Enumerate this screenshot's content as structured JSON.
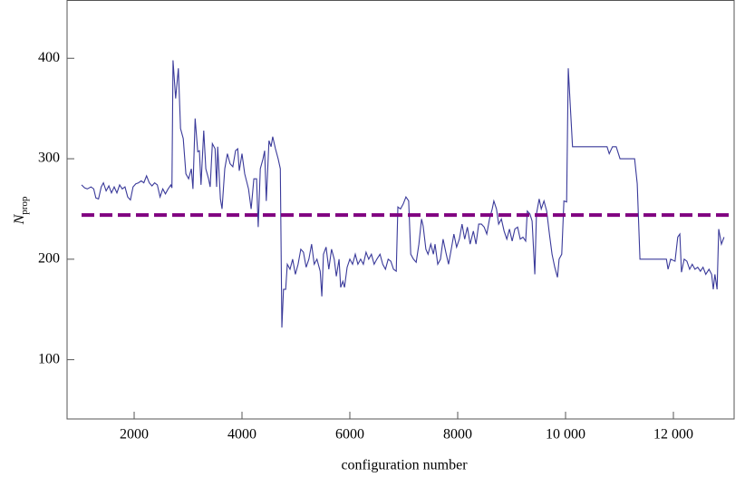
{
  "chart_data": {
    "type": "line",
    "xlabel": "configuration number",
    "ylabel": {
      "main": "N",
      "sub": "prop"
    },
    "xlim": [
      756,
      13126
    ],
    "ylim": [
      41,
      458
    ],
    "xticks": [
      2000,
      4000,
      6000,
      8000,
      {
        "value": 10000,
        "label": "10 000"
      },
      {
        "value": 12000,
        "label": "12 000"
      }
    ],
    "yticks": [
      100,
      200,
      300,
      400
    ],
    "reference_line": {
      "value": 244,
      "color": "#800080"
    },
    "series": [
      {
        "color": "#3a3a9a",
        "x": [
          1025,
          1080,
          1130,
          1200,
          1250,
          1290,
          1340,
          1390,
          1430,
          1480,
          1530,
          1580,
          1630,
          1680,
          1730,
          1780,
          1830,
          1880,
          1930,
          1980,
          2030,
          2080,
          2130,
          2180,
          2230,
          2280,
          2330,
          2380,
          2430,
          2480,
          2530,
          2580,
          2630,
          2680,
          2700,
          2720,
          2770,
          2820,
          2860,
          2910,
          2960,
          3010,
          3060,
          3090,
          3130,
          3180,
          3210,
          3240,
          3290,
          3330,
          3380,
          3410,
          3450,
          3500,
          3530,
          3550,
          3600,
          3630,
          3680,
          3730,
          3780,
          3830,
          3880,
          3920,
          3950,
          4000,
          4050,
          4120,
          4170,
          4220,
          4270,
          4300,
          4340,
          4390,
          4420,
          4450,
          4500,
          4540,
          4570,
          4620,
          4670,
          4710,
          4740,
          4770,
          4810,
          4840,
          4890,
          4940,
          4990,
          5040,
          5090,
          5140,
          5190,
          5240,
          5290,
          5340,
          5390,
          5450,
          5480,
          5510,
          5560,
          5610,
          5660,
          5710,
          5750,
          5800,
          5830,
          5870,
          5900,
          5950,
          6000,
          6050,
          6100,
          6150,
          6200,
          6250,
          6300,
          6350,
          6400,
          6450,
          6500,
          6560,
          6610,
          6660,
          6710,
          6760,
          6810,
          6860,
          6890,
          6940,
          6990,
          7040,
          7090,
          7130,
          7180,
          7230,
          7280,
          7330,
          7360,
          7410,
          7450,
          7500,
          7550,
          7580,
          7630,
          7680,
          7730,
          7780,
          7830,
          7880,
          7930,
          7980,
          8030,
          8080,
          8130,
          8180,
          8230,
          8290,
          8340,
          8390,
          8440,
          8490,
          8540,
          8590,
          8640,
          8670,
          8720,
          8760,
          8810,
          8860,
          8910,
          8960,
          9010,
          9060,
          9110,
          9160,
          9210,
          9260,
          9290,
          9340,
          9380,
          9430,
          9460,
          9510,
          9550,
          9600,
          9650,
          9700,
          9750,
          9800,
          9850,
          9880,
          9930,
          9970,
          10020,
          10050,
          10080,
          10130,
          10770,
          10810,
          10870,
          10940,
          11010,
          11280,
          11330,
          11380,
          11870,
          11900,
          11950,
          12030,
          12080,
          12120,
          12150,
          12200,
          12250,
          12300,
          12350,
          12400,
          12450,
          12500,
          12550,
          12600,
          12660,
          12710,
          12740,
          12770,
          12810,
          12840,
          12890,
          12940
        ],
        "values": [
          274,
          271,
          270,
          272,
          270,
          261,
          260,
          272,
          276,
          268,
          273,
          266,
          272,
          266,
          274,
          270,
          272,
          262,
          259,
          272,
          275,
          276,
          278,
          276,
          283,
          276,
          273,
          276,
          274,
          262,
          270,
          265,
          270,
          274,
          271,
          398,
          360,
          390,
          330,
          320,
          285,
          280,
          290,
          270,
          340,
          307,
          308,
          274,
          328,
          290,
          280,
          272,
          315,
          310,
          272,
          312,
          260,
          250,
          290,
          305,
          295,
          292,
          308,
          310,
          288,
          305,
          285,
          270,
          250,
          280,
          280,
          232,
          290,
          300,
          308,
          258,
          318,
          312,
          322,
          310,
          300,
          290,
          132,
          170,
          170,
          195,
          190,
          200,
          185,
          195,
          210,
          207,
          192,
          200,
          215,
          195,
          200,
          188,
          163,
          205,
          212,
          190,
          210,
          200,
          183,
          200,
          172,
          178,
          172,
          192,
          200,
          195,
          205,
          195,
          200,
          195,
          207,
          200,
          205,
          195,
          200,
          205,
          195,
          190,
          200,
          198,
          190,
          188,
          252,
          250,
          255,
          262,
          258,
          205,
          200,
          197,
          215,
          240,
          233,
          210,
          205,
          215,
          205,
          215,
          195,
          200,
          220,
          207,
          195,
          210,
          225,
          212,
          220,
          235,
          220,
          232,
          215,
          228,
          215,
          235,
          235,
          232,
          225,
          240,
          250,
          258,
          250,
          235,
          240,
          228,
          220,
          230,
          218,
          230,
          232,
          220,
          222,
          218,
          248,
          245,
          238,
          185,
          245,
          260,
          250,
          258,
          248,
          225,
          205,
          192,
          182,
          200,
          205,
          258,
          257,
          390,
          360,
          312,
          312,
          305,
          312,
          312,
          300,
          300,
          275,
          200,
          200,
          190,
          200,
          198,
          222,
          225,
          187,
          200,
          198,
          190,
          195,
          190,
          192,
          188,
          192,
          185,
          190,
          185,
          170,
          185,
          170,
          230,
          215,
          222
        ]
      }
    ]
  }
}
